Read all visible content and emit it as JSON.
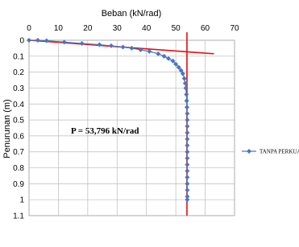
{
  "chart_data": {
    "type": "line",
    "x_label": "Beban (kN/rad)",
    "y_label": "Penurunan (m)",
    "annotation": "P = 53,796 kN/rad",
    "xlim": [
      0,
      70
    ],
    "xticks": [
      0,
      10,
      20,
      30,
      40,
      50,
      60,
      70
    ],
    "ylim": [
      0,
      1.1
    ],
    "yticks": [
      0,
      0.1,
      0.2,
      0.3,
      0.4,
      0.5,
      0.6,
      0.7,
      0.8,
      0.9,
      1,
      1.1
    ],
    "y_reversed": true,
    "x_axis_top": true,
    "grid": true,
    "legend": "right",
    "series": [
      {
        "name": "TANPA PERKUATA",
        "color": "#4a76c0",
        "x": [
          0,
          3,
          6,
          12,
          18,
          24,
          28,
          32,
          35,
          38,
          41,
          44,
          46,
          47.5,
          49,
          50,
          51,
          51.8,
          52.4,
          52.9,
          53.2,
          53.4,
          53.6,
          53.7,
          53.8,
          53.9,
          53.9,
          53.9,
          53.9,
          53.9,
          53.9,
          53.9,
          53.9,
          53.9,
          53.9,
          53.9,
          53.9,
          53.9,
          53.9,
          53.9
        ],
        "y": [
          0,
          0,
          0.003,
          0.012,
          0.02,
          0.028,
          0.035,
          0.043,
          0.05,
          0.06,
          0.07,
          0.085,
          0.1,
          0.115,
          0.13,
          0.15,
          0.17,
          0.19,
          0.21,
          0.24,
          0.27,
          0.3,
          0.34,
          0.38,
          0.42,
          0.46,
          0.5,
          0.54,
          0.58,
          0.62,
          0.66,
          0.7,
          0.74,
          0.78,
          0.82,
          0.86,
          0.9,
          0.94,
          0.98,
          1
        ]
      }
    ],
    "lines": [
      {
        "color": "#e01010",
        "x": [
          0,
          63
        ],
        "y": [
          0,
          0.085
        ]
      },
      {
        "color": "#e01010",
        "x": [
          53.796,
          53.796
        ],
        "y": [
          -0.05,
          1.1
        ]
      }
    ]
  }
}
